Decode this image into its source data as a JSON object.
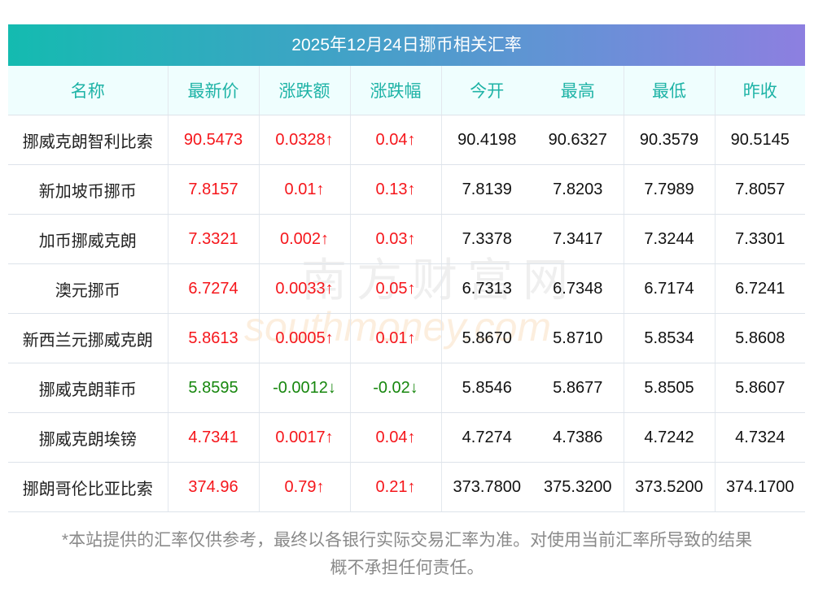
{
  "title": "2025年12月24日挪币相关汇率",
  "headers": [
    "名称",
    "最新价",
    "涨跌额",
    "涨跌幅",
    "今开",
    "最高",
    "最低",
    "昨收"
  ],
  "rows": [
    {
      "name": "挪威克朗智利比索",
      "latest": "90.5473",
      "change": "0.0328↑",
      "pct": "0.04↑",
      "open": "90.4198",
      "high": "90.6327",
      "low": "90.3579",
      "prev": "90.5145",
      "trend": "up"
    },
    {
      "name": "新加坡币挪币",
      "latest": "7.8157",
      "change": "0.01↑",
      "pct": "0.13↑",
      "open": "7.8139",
      "high": "7.8203",
      "low": "7.7989",
      "prev": "7.8057",
      "trend": "up"
    },
    {
      "name": "加币挪威克朗",
      "latest": "7.3321",
      "change": "0.002↑",
      "pct": "0.03↑",
      "open": "7.3378",
      "high": "7.3417",
      "low": "7.3244",
      "prev": "7.3301",
      "trend": "up"
    },
    {
      "name": "澳元挪币",
      "latest": "6.7274",
      "change": "0.0033↑",
      "pct": "0.05↑",
      "open": "6.7313",
      "high": "6.7348",
      "low": "6.7174",
      "prev": "6.7241",
      "trend": "up"
    },
    {
      "name": "新西兰元挪威克朗",
      "latest": "5.8613",
      "change": "0.0005↑",
      "pct": "0.01↑",
      "open": "5.8670",
      "high": "5.8710",
      "low": "5.8534",
      "prev": "5.8608",
      "trend": "up"
    },
    {
      "name": "挪威克朗菲币",
      "latest": "5.8595",
      "change": "-0.0012↓",
      "pct": "-0.02↓",
      "open": "5.8546",
      "high": "5.8677",
      "low": "5.8505",
      "prev": "5.8607",
      "trend": "down"
    },
    {
      "name": "挪威克朗埃镑",
      "latest": "4.7341",
      "change": "0.0017↑",
      "pct": "0.04↑",
      "open": "4.7274",
      "high": "4.7386",
      "low": "4.7242",
      "prev": "4.7324",
      "trend": "up"
    },
    {
      "name": "挪朗哥伦比亚比索",
      "latest": "374.96",
      "change": "0.79↑",
      "pct": "0.21↑",
      "open": "373.7800",
      "high": "375.3200",
      "low": "373.5200",
      "prev": "374.1700",
      "trend": "up"
    }
  ],
  "disclaimer_line1": "*本站提供的汇率仅供参考，最终以各银行实际交易汇率为准。对使用当前汇率所导致的结果",
  "disclaimer_line2": "概不承担任何责任。",
  "watermark": {
    "cn": "南方财富网",
    "en": "southmoney.com"
  },
  "colors": {
    "up": "#f5161b",
    "down": "#17870e",
    "header_text": "#1eb3a6"
  }
}
